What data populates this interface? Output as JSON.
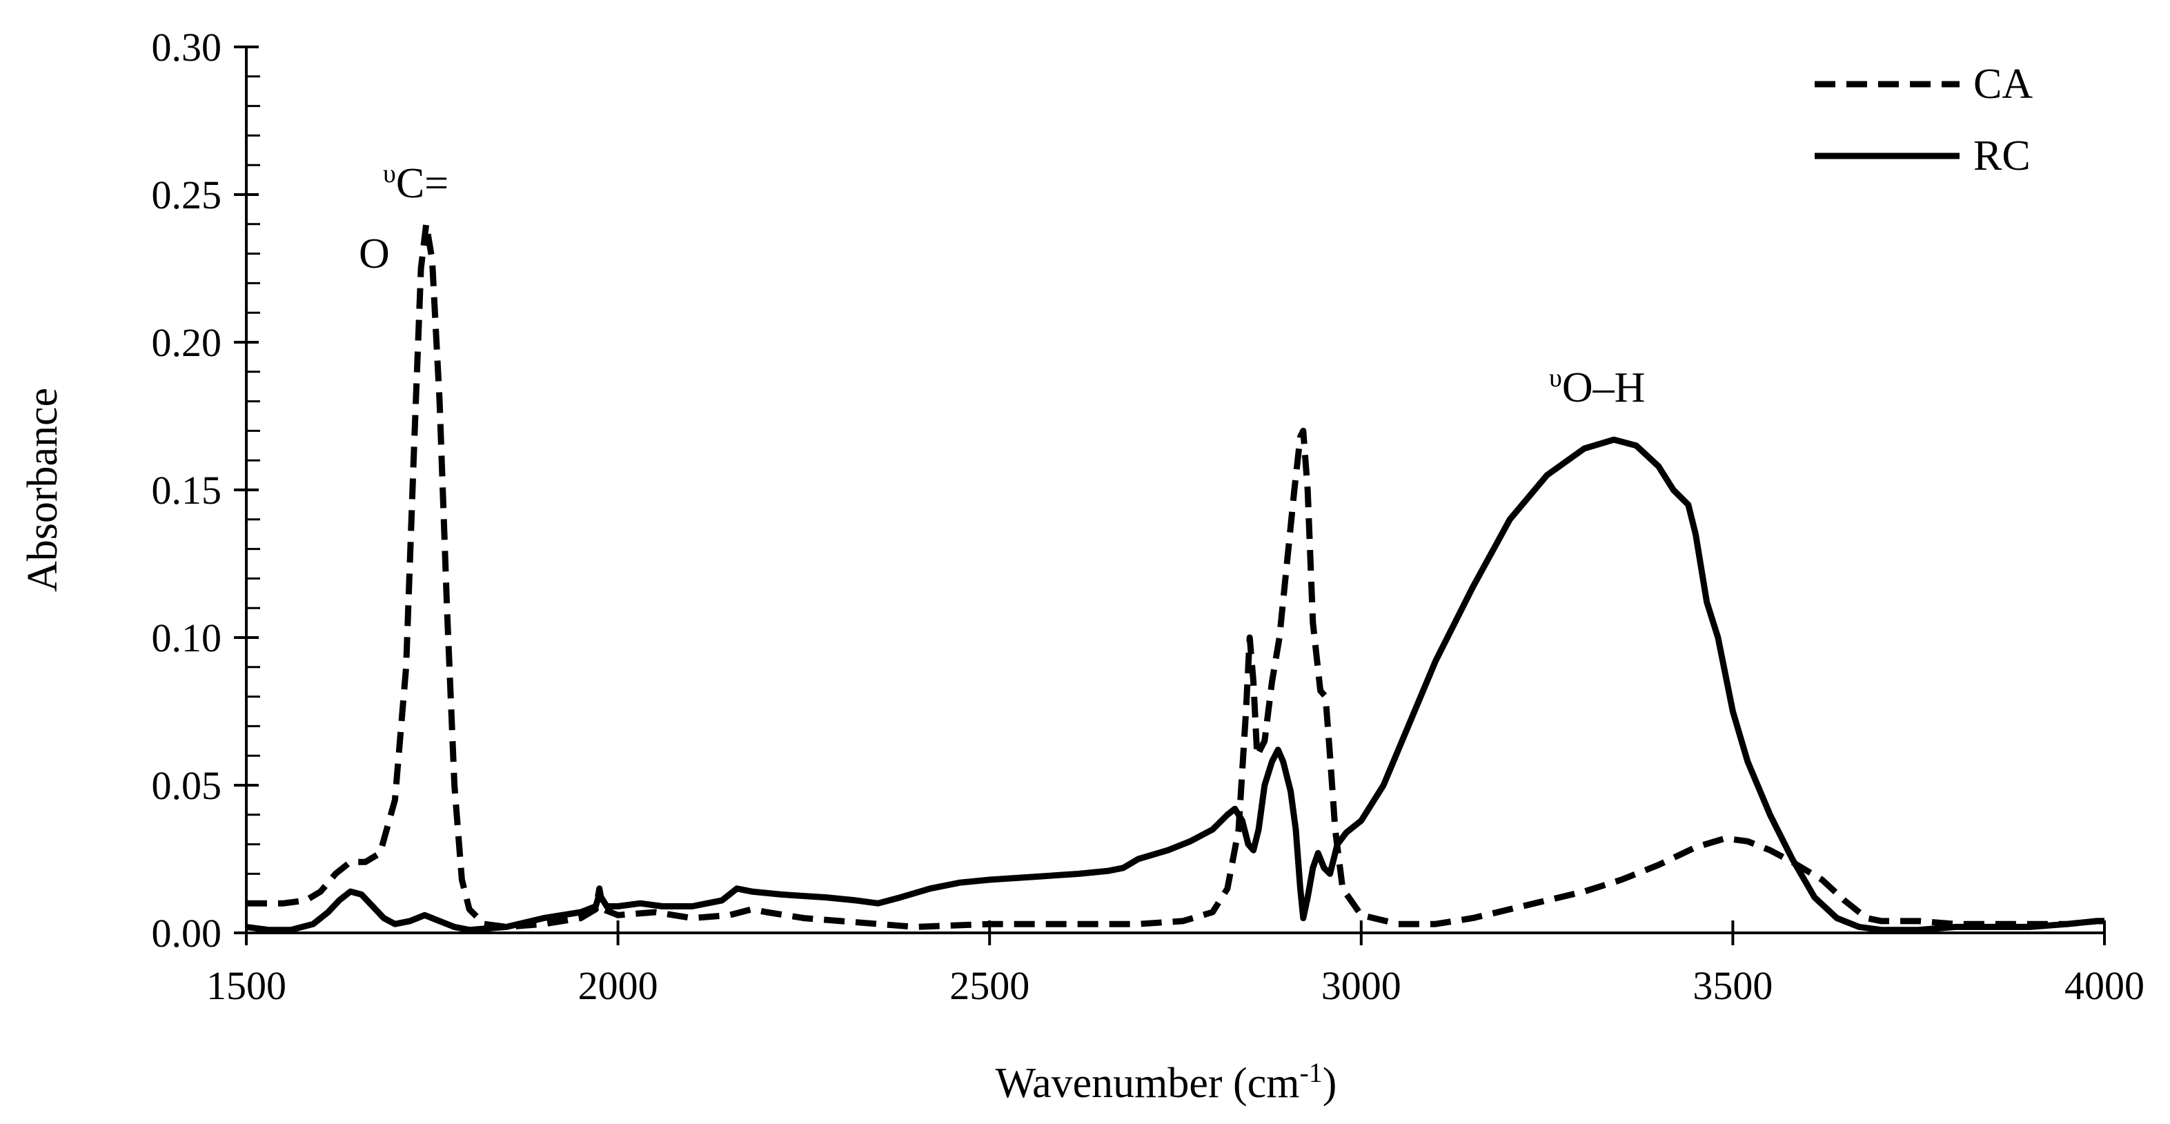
{
  "chart_data": {
    "type": "line",
    "title": "",
    "xlabel": "Wavenumber (cm",
    "xlabel_sup": "-1",
    "xlabel_end": ")",
    "ylabel": "Absorbance",
    "xlim": [
      1500,
      4000
    ],
    "ylim": [
      0,
      0.3
    ],
    "xticks": [
      {
        "value": 1500,
        "label": "1500"
      },
      {
        "value": 2000,
        "label": "2000"
      },
      {
        "value": 2500,
        "label": "2500"
      },
      {
        "value": 3000,
        "label": "3000"
      },
      {
        "value": 3500,
        "label": "3500"
      },
      {
        "value": 4000,
        "label": "4000"
      }
    ],
    "yticks": [
      {
        "value": 0.0,
        "label": "0.00"
      },
      {
        "value": 0.05,
        "label": "0.05"
      },
      {
        "value": 0.1,
        "label": "0.10"
      },
      {
        "value": 0.15,
        "label": "0.15"
      },
      {
        "value": 0.2,
        "label": "0.20"
      },
      {
        "value": 0.25,
        "label": "0.25"
      },
      {
        "value": 0.3,
        "label": "0.30"
      }
    ],
    "y_minor_step": 0.01,
    "grid": false,
    "legend_position": "top-right",
    "series": [
      {
        "name": "CA",
        "style": "dashed",
        "color": "#000000",
        "points": [
          [
            1500,
            0.01
          ],
          [
            1550,
            0.01
          ],
          [
            1580,
            0.011
          ],
          [
            1600,
            0.014
          ],
          [
            1620,
            0.02
          ],
          [
            1640,
            0.024
          ],
          [
            1660,
            0.024
          ],
          [
            1680,
            0.027
          ],
          [
            1700,
            0.045
          ],
          [
            1715,
            0.09
          ],
          [
            1725,
            0.16
          ],
          [
            1735,
            0.225
          ],
          [
            1742,
            0.24
          ],
          [
            1750,
            0.228
          ],
          [
            1760,
            0.18
          ],
          [
            1770,
            0.11
          ],
          [
            1780,
            0.05
          ],
          [
            1790,
            0.018
          ],
          [
            1800,
            0.008
          ],
          [
            1820,
            0.003
          ],
          [
            1850,
            0.002
          ],
          [
            1900,
            0.003
          ],
          [
            1950,
            0.005
          ],
          [
            1970,
            0.008
          ],
          [
            1975,
            0.015
          ],
          [
            1980,
            0.008
          ],
          [
            2000,
            0.006
          ],
          [
            2050,
            0.007
          ],
          [
            2100,
            0.005
          ],
          [
            2150,
            0.006
          ],
          [
            2180,
            0.008
          ],
          [
            2200,
            0.007
          ],
          [
            2250,
            0.005
          ],
          [
            2300,
            0.004
          ],
          [
            2400,
            0.002
          ],
          [
            2500,
            0.003
          ],
          [
            2600,
            0.003
          ],
          [
            2700,
            0.003
          ],
          [
            2760,
            0.004
          ],
          [
            2800,
            0.007
          ],
          [
            2820,
            0.015
          ],
          [
            2835,
            0.035
          ],
          [
            2845,
            0.075
          ],
          [
            2850,
            0.1
          ],
          [
            2855,
            0.085
          ],
          [
            2860,
            0.06
          ],
          [
            2870,
            0.065
          ],
          [
            2880,
            0.085
          ],
          [
            2890,
            0.1
          ],
          [
            2900,
            0.125
          ],
          [
            2910,
            0.15
          ],
          [
            2918,
            0.168
          ],
          [
            2922,
            0.17
          ],
          [
            2928,
            0.15
          ],
          [
            2935,
            0.105
          ],
          [
            2945,
            0.082
          ],
          [
            2952,
            0.08
          ],
          [
            2958,
            0.06
          ],
          [
            2965,
            0.035
          ],
          [
            2975,
            0.015
          ],
          [
            3000,
            0.006
          ],
          [
            3050,
            0.003
          ],
          [
            3100,
            0.003
          ],
          [
            3150,
            0.005
          ],
          [
            3200,
            0.008
          ],
          [
            3250,
            0.011
          ],
          [
            3300,
            0.014
          ],
          [
            3350,
            0.018
          ],
          [
            3400,
            0.023
          ],
          [
            3450,
            0.029
          ],
          [
            3490,
            0.032
          ],
          [
            3520,
            0.031
          ],
          [
            3550,
            0.028
          ],
          [
            3580,
            0.024
          ],
          [
            3620,
            0.018
          ],
          [
            3650,
            0.011
          ],
          [
            3680,
            0.005
          ],
          [
            3700,
            0.004
          ],
          [
            3750,
            0.004
          ],
          [
            3800,
            0.003
          ],
          [
            3850,
            0.003
          ],
          [
            3900,
            0.003
          ],
          [
            3950,
            0.003
          ],
          [
            3990,
            0.004
          ],
          [
            4000,
            0.004
          ]
        ]
      },
      {
        "name": "RC",
        "style": "solid",
        "color": "#000000",
        "points": [
          [
            1500,
            0.002
          ],
          [
            1530,
            0.001
          ],
          [
            1560,
            0.001
          ],
          [
            1590,
            0.003
          ],
          [
            1610,
            0.007
          ],
          [
            1625,
            0.011
          ],
          [
            1640,
            0.014
          ],
          [
            1655,
            0.013
          ],
          [
            1670,
            0.009
          ],
          [
            1685,
            0.005
          ],
          [
            1700,
            0.003
          ],
          [
            1720,
            0.004
          ],
          [
            1740,
            0.006
          ],
          [
            1760,
            0.004
          ],
          [
            1780,
            0.002
          ],
          [
            1800,
            0.001
          ],
          [
            1850,
            0.002
          ],
          [
            1900,
            0.005
          ],
          [
            1950,
            0.007
          ],
          [
            1970,
            0.009
          ],
          [
            1975,
            0.013
          ],
          [
            1985,
            0.009
          ],
          [
            2000,
            0.009
          ],
          [
            2030,
            0.01
          ],
          [
            2060,
            0.009
          ],
          [
            2100,
            0.009
          ],
          [
            2140,
            0.011
          ],
          [
            2160,
            0.015
          ],
          [
            2180,
            0.014
          ],
          [
            2220,
            0.013
          ],
          [
            2280,
            0.012
          ],
          [
            2320,
            0.011
          ],
          [
            2350,
            0.01
          ],
          [
            2380,
            0.012
          ],
          [
            2420,
            0.015
          ],
          [
            2460,
            0.017
          ],
          [
            2500,
            0.018
          ],
          [
            2560,
            0.019
          ],
          [
            2620,
            0.02
          ],
          [
            2660,
            0.021
          ],
          [
            2680,
            0.022
          ],
          [
            2700,
            0.025
          ],
          [
            2740,
            0.028
          ],
          [
            2770,
            0.031
          ],
          [
            2800,
            0.035
          ],
          [
            2820,
            0.04
          ],
          [
            2830,
            0.042
          ],
          [
            2840,
            0.038
          ],
          [
            2848,
            0.03
          ],
          [
            2855,
            0.028
          ],
          [
            2862,
            0.035
          ],
          [
            2870,
            0.05
          ],
          [
            2880,
            0.058
          ],
          [
            2888,
            0.062
          ],
          [
            2895,
            0.058
          ],
          [
            2905,
            0.048
          ],
          [
            2912,
            0.035
          ],
          [
            2918,
            0.015
          ],
          [
            2922,
            0.005
          ],
          [
            2928,
            0.012
          ],
          [
            2935,
            0.022
          ],
          [
            2942,
            0.027
          ],
          [
            2950,
            0.022
          ],
          [
            2958,
            0.02
          ],
          [
            2968,
            0.03
          ],
          [
            2980,
            0.034
          ],
          [
            3000,
            0.038
          ],
          [
            3030,
            0.05
          ],
          [
            3060,
            0.068
          ],
          [
            3100,
            0.092
          ],
          [
            3150,
            0.117
          ],
          [
            3200,
            0.14
          ],
          [
            3250,
            0.155
          ],
          [
            3300,
            0.164
          ],
          [
            3340,
            0.167
          ],
          [
            3370,
            0.165
          ],
          [
            3400,
            0.158
          ],
          [
            3420,
            0.15
          ],
          [
            3440,
            0.145
          ],
          [
            3450,
            0.135
          ],
          [
            3465,
            0.112
          ],
          [
            3480,
            0.1
          ],
          [
            3500,
            0.075
          ],
          [
            3520,
            0.058
          ],
          [
            3550,
            0.04
          ],
          [
            3580,
            0.025
          ],
          [
            3610,
            0.012
          ],
          [
            3640,
            0.005
          ],
          [
            3670,
            0.002
          ],
          [
            3700,
            0.001
          ],
          [
            3750,
            0.001
          ],
          [
            3800,
            0.002
          ],
          [
            3850,
            0.002
          ],
          [
            3900,
            0.002
          ],
          [
            3950,
            0.003
          ],
          [
            3990,
            0.004
          ],
          [
            4000,
            0.004
          ]
        ]
      }
    ],
    "annotations": [
      {
        "name": "carbonyl-annotation",
        "text_small": "υ",
        "text_line1": "C=",
        "text_line2": "O",
        "x": 1712,
        "y": 0.255
      },
      {
        "name": "hydroxyl-annotation",
        "text_small": "υ",
        "text": "O–H",
        "x": 3240,
        "y": 0.18
      }
    ]
  }
}
